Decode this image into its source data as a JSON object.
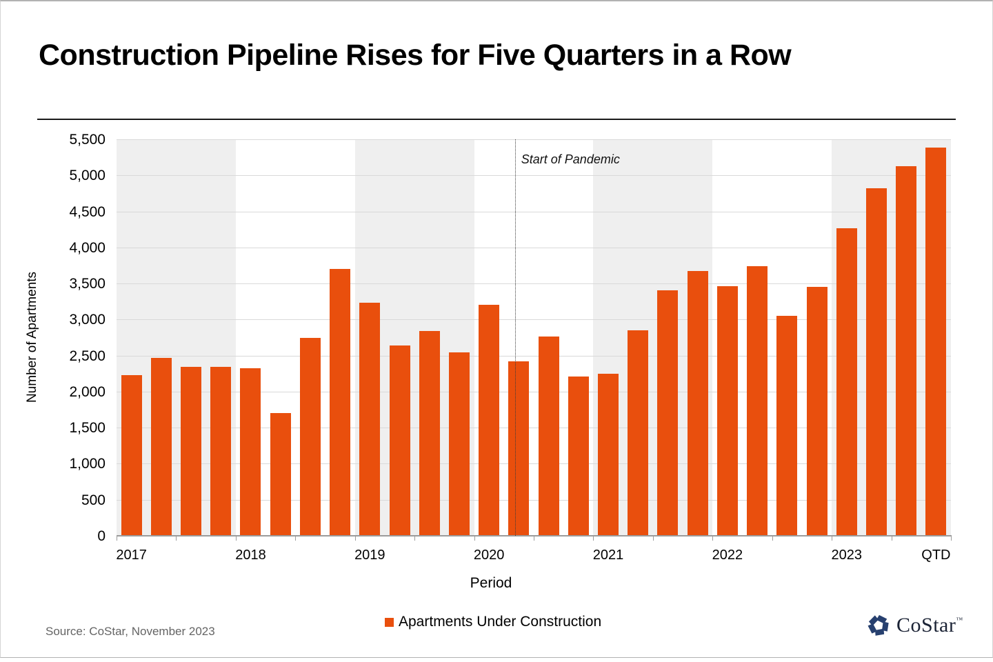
{
  "slide": {
    "title": "Construction Pipeline Rises for Five Quarters in a Row",
    "source": "Source: CoStar, November 2023",
    "logo_text": "CoStar",
    "logo_tm": "™"
  },
  "colors": {
    "bar": "#E94F0D",
    "band": "#EFEFEF",
    "grid": "#D9D9D9",
    "axis": "#9B9B9B",
    "source_text": "#646464",
    "logo_navy": "#27406F",
    "logo_text": "#1B2335"
  },
  "chart_data": {
    "type": "bar",
    "title": "Construction Pipeline Rises for Five Quarters in a Row",
    "xlabel": "Period",
    "ylabel": "Number of Apartments",
    "ylim": [
      0,
      5500
    ],
    "ytick_step": 500,
    "grid": true,
    "legend_position": "bottom",
    "series_name": "Apartments Under Construction",
    "categories": [
      "2017 Q1",
      "2017 Q2",
      "2017 Q3",
      "2017 Q4",
      "2018 Q1",
      "2018 Q2",
      "2018 Q3",
      "2018 Q4",
      "2019 Q1",
      "2019 Q2",
      "2019 Q3",
      "2019 Q4",
      "2020 Q1",
      "2020 Q2",
      "2020 Q3",
      "2020 Q4",
      "2021 Q1",
      "2021 Q2",
      "2021 Q3",
      "2021 Q4",
      "2022 Q1",
      "2022 Q2",
      "2022 Q3",
      "2022 Q4",
      "2023 Q1",
      "2023 Q2",
      "2023 Q3",
      "2023 QTD"
    ],
    "values": [
      2230,
      2470,
      2340,
      2340,
      2320,
      1700,
      2750,
      3700,
      3230,
      2640,
      2840,
      2540,
      3200,
      2420,
      2760,
      2210,
      2250,
      2850,
      3410,
      3670,
      3460,
      3740,
      3050,
      3450,
      4270,
      4820,
      5130,
      5390
    ],
    "years_per_band": 7,
    "x_year_labels": [
      {
        "label": "2017",
        "bar_index": 0
      },
      {
        "label": "2018",
        "bar_index": 4
      },
      {
        "label": "2019",
        "bar_index": 8
      },
      {
        "label": "2020",
        "bar_index": 12
      },
      {
        "label": "2021",
        "bar_index": 16
      },
      {
        "label": "2022",
        "bar_index": 20
      },
      {
        "label": "2023",
        "bar_index": 24
      },
      {
        "label": "QTD",
        "bar_index": 27
      }
    ],
    "annotation": {
      "text": "Start of Pandemic",
      "x_index": 13.37
    }
  }
}
